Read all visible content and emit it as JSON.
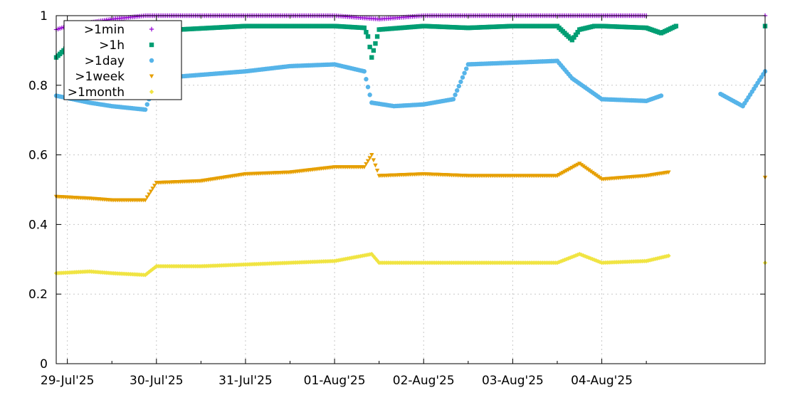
{
  "chart_data": {
    "type": "scatter",
    "title": "",
    "xlabel": "",
    "ylabel": "",
    "ylim": [
      0,
      1
    ],
    "y_ticks": [
      "0",
      "0.2",
      "0.4",
      "0.6",
      "0.8",
      "1"
    ],
    "x_start": "2025-07-28T21:00",
    "x_end": "2025-08-05T20:00",
    "x_ticks": [
      {
        "date": "2025-07-29T00:00",
        "label": "29-Jul'25"
      },
      {
        "date": "2025-07-30T00:00",
        "label": "30-Jul'25"
      },
      {
        "date": "2025-07-31T00:00",
        "label": "31-Jul'25"
      },
      {
        "date": "2025-08-01T00:00",
        "label": "01-Aug'25"
      },
      {
        "date": "2025-08-02T00:00",
        "label": "02-Aug'25"
      },
      {
        "date": "2025-08-03T00:00",
        "label": "03-Aug'25"
      },
      {
        "date": "2025-08-04T00:00",
        "label": "04-Aug'25"
      }
    ],
    "grid": true,
    "legend_position": "top-left",
    "series": [
      {
        "name": ">1min",
        "color": "#9400d3",
        "marker": "plus",
        "points": [
          {
            "x": "2025-07-28T21:00",
            "y": 0.96
          },
          {
            "x": "2025-07-29T00:00",
            "y": 0.97
          },
          {
            "x": "2025-07-29T06:00",
            "y": 0.98
          },
          {
            "x": "2025-07-29T12:00",
            "y": 0.99
          },
          {
            "x": "2025-07-29T21:00",
            "y": 1.0
          },
          {
            "x": "2025-07-30T12:00",
            "y": 1.0
          },
          {
            "x": "2025-07-31T00:00",
            "y": 1.0
          },
          {
            "x": "2025-07-31T12:00",
            "y": 1.0
          },
          {
            "x": "2025-08-01T00:00",
            "y": 1.0
          },
          {
            "x": "2025-08-01T12:00",
            "y": 0.99
          },
          {
            "x": "2025-08-02T00:00",
            "y": 1.0
          },
          {
            "x": "2025-08-02T12:00",
            "y": 1.0
          },
          {
            "x": "2025-08-03T00:00",
            "y": 1.0
          },
          {
            "x": "2025-08-03T12:00",
            "y": 1.0
          },
          {
            "x": "2025-08-04T00:00",
            "y": 1.0
          },
          {
            "x": "2025-08-04T12:00",
            "y": 1.0
          },
          {
            "x": "2025-08-05T20:00",
            "y": 1.0
          }
        ]
      },
      {
        "name": ">1h",
        "color": "#009e73",
        "marker": "square",
        "points": [
          {
            "x": "2025-07-28T21:00",
            "y": 0.88
          },
          {
            "x": "2025-07-29T03:00",
            "y": 0.94
          },
          {
            "x": "2025-07-29T12:00",
            "y": 0.95
          },
          {
            "x": "2025-07-29T21:00",
            "y": 0.96
          },
          {
            "x": "2025-07-30T06:00",
            "y": 0.96
          },
          {
            "x": "2025-07-30T15:00",
            "y": 0.965
          },
          {
            "x": "2025-07-31T00:00",
            "y": 0.97
          },
          {
            "x": "2025-07-31T12:00",
            "y": 0.97
          },
          {
            "x": "2025-08-01T00:00",
            "y": 0.97
          },
          {
            "x": "2025-08-01T08:00",
            "y": 0.965
          },
          {
            "x": "2025-08-01T09:00",
            "y": 0.94
          },
          {
            "x": "2025-08-01T10:00",
            "y": 0.88
          },
          {
            "x": "2025-08-01T12:00",
            "y": 0.96
          },
          {
            "x": "2025-08-02T00:00",
            "y": 0.97
          },
          {
            "x": "2025-08-02T12:00",
            "y": 0.965
          },
          {
            "x": "2025-08-03T00:00",
            "y": 0.97
          },
          {
            "x": "2025-08-03T12:00",
            "y": 0.97
          },
          {
            "x": "2025-08-03T16:00",
            "y": 0.93
          },
          {
            "x": "2025-08-03T18:00",
            "y": 0.96
          },
          {
            "x": "2025-08-03T22:00",
            "y": 0.97
          },
          {
            "x": "2025-08-04T00:00",
            "y": 0.97
          },
          {
            "x": "2025-08-04T12:00",
            "y": 0.965
          },
          {
            "x": "2025-08-04T16:00",
            "y": 0.95
          },
          {
            "x": "2025-08-04T20:00",
            "y": 0.97
          },
          {
            "x": "2025-08-05T20:00",
            "y": 0.97
          }
        ]
      },
      {
        "name": ">1day",
        "color": "#56b4e9",
        "marker": "circle",
        "points": [
          {
            "x": "2025-07-28T21:00",
            "y": 0.77
          },
          {
            "x": "2025-07-29T06:00",
            "y": 0.75
          },
          {
            "x": "2025-07-29T12:00",
            "y": 0.74
          },
          {
            "x": "2025-07-29T21:00",
            "y": 0.73
          },
          {
            "x": "2025-07-30T00:00",
            "y": 0.82
          },
          {
            "x": "2025-07-30T12:00",
            "y": 0.83
          },
          {
            "x": "2025-07-31T00:00",
            "y": 0.84
          },
          {
            "x": "2025-07-31T12:00",
            "y": 0.855
          },
          {
            "x": "2025-08-01T00:00",
            "y": 0.86
          },
          {
            "x": "2025-08-01T08:00",
            "y": 0.84
          },
          {
            "x": "2025-08-01T10:00",
            "y": 0.75
          },
          {
            "x": "2025-08-01T16:00",
            "y": 0.74
          },
          {
            "x": "2025-08-02T00:00",
            "y": 0.745
          },
          {
            "x": "2025-08-02T08:00",
            "y": 0.76
          },
          {
            "x": "2025-08-02T12:00",
            "y": 0.86
          },
          {
            "x": "2025-08-03T00:00",
            "y": 0.865
          },
          {
            "x": "2025-08-03T12:00",
            "y": 0.87
          },
          {
            "x": "2025-08-03T16:00",
            "y": 0.82
          },
          {
            "x": "2025-08-04T00:00",
            "y": 0.76
          },
          {
            "x": "2025-08-04T12:00",
            "y": 0.755
          },
          {
            "x": "2025-08-04T16:00",
            "y": 0.77
          },
          {
            "x": "2025-08-05T08:00",
            "y": 0.775
          },
          {
            "x": "2025-08-05T14:00",
            "y": 0.74
          },
          {
            "x": "2025-08-05T20:00",
            "y": 0.84
          }
        ]
      },
      {
        "name": ">1week",
        "color": "#e69f00",
        "marker": "triangle-down",
        "points": [
          {
            "x": "2025-07-28T21:00",
            "y": 0.48
          },
          {
            "x": "2025-07-29T06:00",
            "y": 0.475
          },
          {
            "x": "2025-07-29T12:00",
            "y": 0.47
          },
          {
            "x": "2025-07-29T21:00",
            "y": 0.47
          },
          {
            "x": "2025-07-30T00:00",
            "y": 0.52
          },
          {
            "x": "2025-07-30T12:00",
            "y": 0.525
          },
          {
            "x": "2025-07-31T00:00",
            "y": 0.545
          },
          {
            "x": "2025-07-31T12:00",
            "y": 0.55
          },
          {
            "x": "2025-08-01T00:00",
            "y": 0.565
          },
          {
            "x": "2025-08-01T08:00",
            "y": 0.565
          },
          {
            "x": "2025-08-01T10:00",
            "y": 0.6
          },
          {
            "x": "2025-08-01T12:00",
            "y": 0.54
          },
          {
            "x": "2025-08-02T00:00",
            "y": 0.545
          },
          {
            "x": "2025-08-02T12:00",
            "y": 0.54
          },
          {
            "x": "2025-08-03T00:00",
            "y": 0.54
          },
          {
            "x": "2025-08-03T12:00",
            "y": 0.54
          },
          {
            "x": "2025-08-03T18:00",
            "y": 0.575
          },
          {
            "x": "2025-08-04T00:00",
            "y": 0.53
          },
          {
            "x": "2025-08-04T12:00",
            "y": 0.54
          },
          {
            "x": "2025-08-04T18:00",
            "y": 0.55
          },
          {
            "x": "2025-08-05T20:00",
            "y": 0.535
          }
        ]
      },
      {
        "name": ">1month",
        "color": "#f0e442",
        "marker": "diamond",
        "points": [
          {
            "x": "2025-07-28T21:00",
            "y": 0.26
          },
          {
            "x": "2025-07-29T06:00",
            "y": 0.265
          },
          {
            "x": "2025-07-29T12:00",
            "y": 0.26
          },
          {
            "x": "2025-07-29T21:00",
            "y": 0.255
          },
          {
            "x": "2025-07-30T00:00",
            "y": 0.28
          },
          {
            "x": "2025-07-30T12:00",
            "y": 0.28
          },
          {
            "x": "2025-07-31T00:00",
            "y": 0.285
          },
          {
            "x": "2025-07-31T12:00",
            "y": 0.29
          },
          {
            "x": "2025-08-01T00:00",
            "y": 0.295
          },
          {
            "x": "2025-08-01T10:00",
            "y": 0.315
          },
          {
            "x": "2025-08-01T12:00",
            "y": 0.29
          },
          {
            "x": "2025-08-02T00:00",
            "y": 0.29
          },
          {
            "x": "2025-08-02T12:00",
            "y": 0.29
          },
          {
            "x": "2025-08-03T00:00",
            "y": 0.29
          },
          {
            "x": "2025-08-03T12:00",
            "y": 0.29
          },
          {
            "x": "2025-08-03T18:00",
            "y": 0.315
          },
          {
            "x": "2025-08-04T00:00",
            "y": 0.29
          },
          {
            "x": "2025-08-04T12:00",
            "y": 0.295
          },
          {
            "x": "2025-08-04T18:00",
            "y": 0.31
          },
          {
            "x": "2025-08-05T20:00",
            "y": 0.29
          }
        ]
      }
    ]
  }
}
